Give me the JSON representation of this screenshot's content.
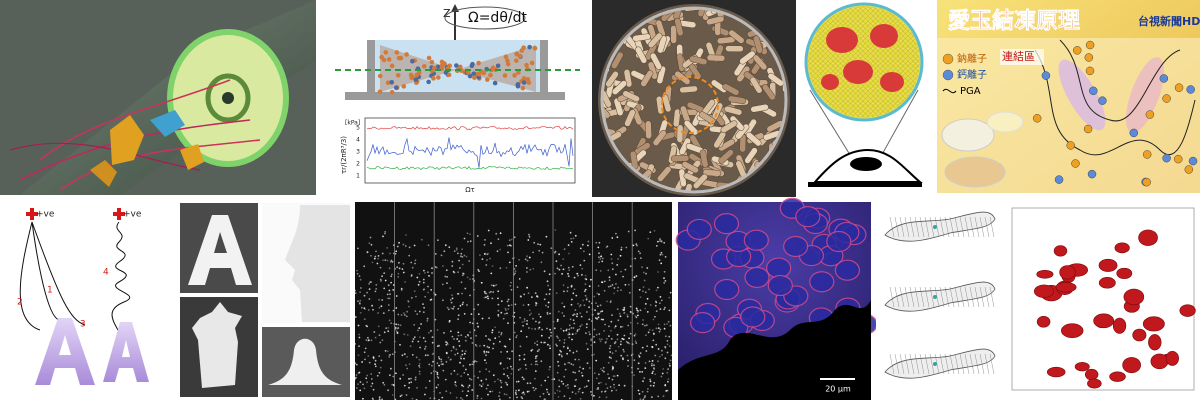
{
  "panels": {
    "flow_plot": {
      "axis_label_z": "Z",
      "equation": "Ω=dθ/dt",
      "unit": "[kPa]",
      "yticks": [
        "5",
        "4",
        "3",
        "2",
        "1"
      ],
      "y_label": "τr/(2πR³/3)",
      "x_label": "Ωτ"
    },
    "aiyu_news": {
      "title": "愛玉結凍原理",
      "channel": "台視新聞HD",
      "legend": [
        "鈉離子",
        "鈣離子",
        "PGA"
      ],
      "region_label": "連結區"
    },
    "printing_path": {
      "pole_labels": [
        "+ve",
        "+ve"
      ],
      "path_numbers": [
        "1",
        "2",
        "3",
        "4"
      ]
    },
    "micrograph": {
      "scale_bar": "20 μm"
    }
  }
}
